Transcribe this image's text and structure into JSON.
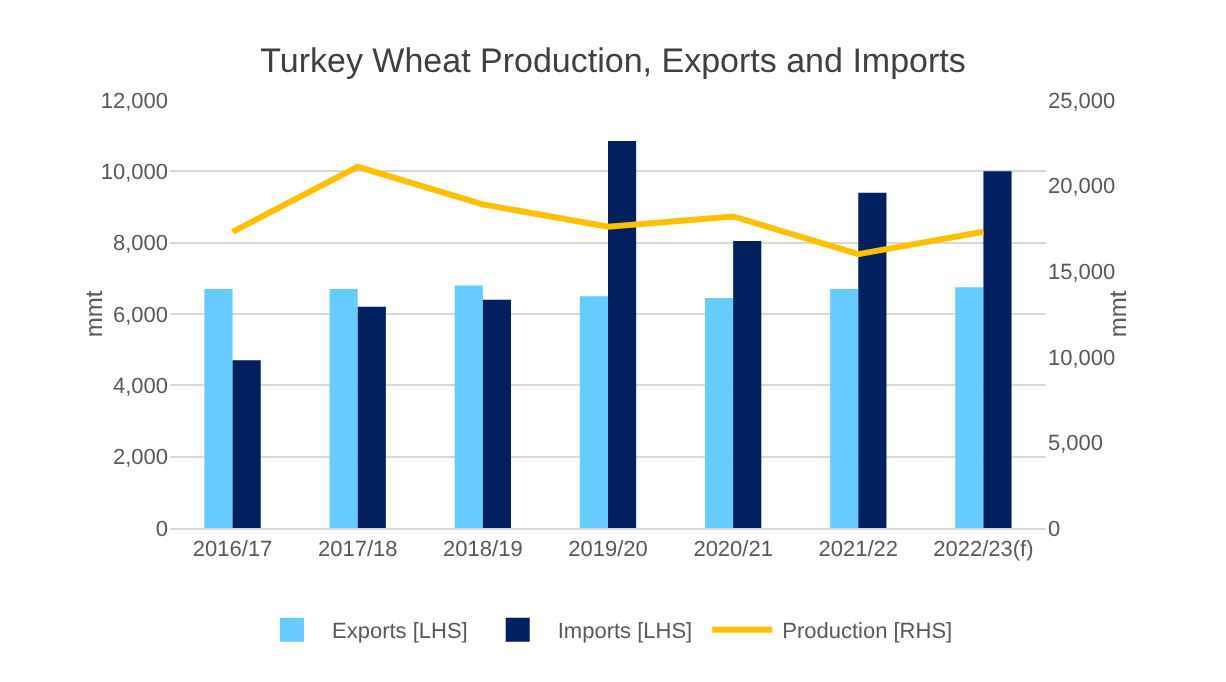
{
  "chart_data": {
    "type": "bar",
    "title": "Turkey Wheat Production, Exports and Imports",
    "ylabel": "mmt",
    "y2label": "mmt",
    "categories": [
      "2016/17",
      "2017/18",
      "2018/19",
      "2019/20",
      "2020/21",
      "2021/22",
      "2022/23(f)"
    ],
    "series": [
      {
        "name": "Exports [LHS]",
        "color": "#66ccff",
        "values": [
          6700,
          6700,
          6800,
          6500,
          6450,
          6700,
          6750
        ]
      },
      {
        "name": "Imports [LHS]",
        "color": "#002060",
        "values": [
          4700,
          6200,
          6400,
          10850,
          8050,
          9400,
          10000
        ]
      },
      {
        "name": "Production [RHS]",
        "type": "line",
        "axis": "y2",
        "color": "#ffc000",
        "values": [
          17300,
          21100,
          18900,
          17600,
          18200,
          16000,
          17300
        ]
      }
    ],
    "ylim": [
      0,
      12000
    ],
    "yticks": [
      {
        "value": 0,
        "label": "0"
      },
      {
        "value": 2000,
        "label": "2,000"
      },
      {
        "value": 4000,
        "label": "4,000"
      },
      {
        "value": 6000,
        "label": "6,000"
      },
      {
        "value": 8000,
        "label": "8,000"
      },
      {
        "value": 10000,
        "label": "10,000"
      },
      {
        "value": 12000,
        "label": "12,000"
      }
    ],
    "y2lim": [
      0,
      25000
    ],
    "y2ticks": [
      {
        "value": 0,
        "label": "0"
      },
      {
        "value": 5000,
        "label": "5,000"
      },
      {
        "value": 10000,
        "label": "10,000"
      },
      {
        "value": 15000,
        "label": "15,000"
      },
      {
        "value": 20000,
        "label": "20,000"
      },
      {
        "value": 25000,
        "label": "25,000"
      }
    ],
    "grid": "y",
    "legend": "bottom",
    "marker": "none"
  }
}
